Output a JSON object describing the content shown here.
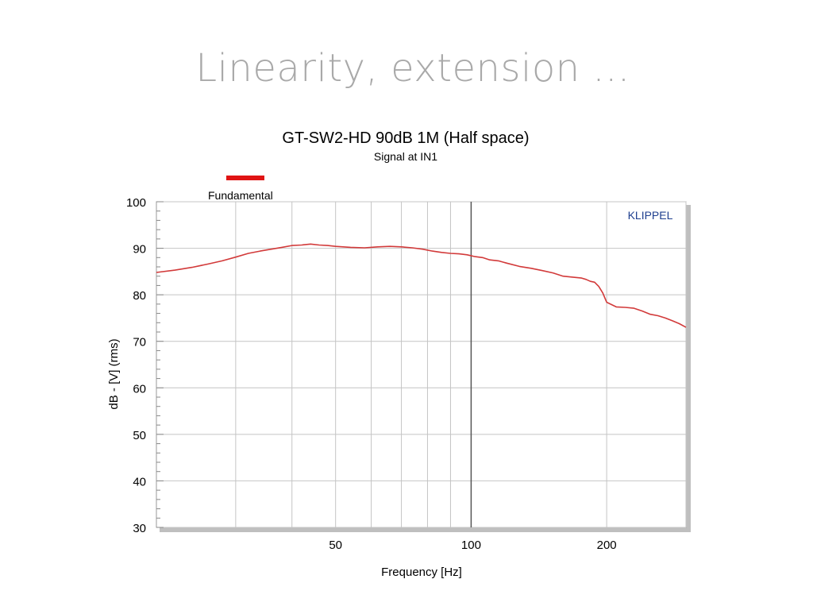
{
  "slide": {
    "title": "Linearity, extension ..."
  },
  "colors": {
    "series": "#d23a3a",
    "legend_swatch": "#e01414",
    "grid": "#c4c4c4",
    "major_grid": "#555555",
    "axis_text": "#000000",
    "watermark": "#1f3f8f",
    "plot_shadow": "#bfbfbf"
  },
  "chart_data": {
    "type": "line",
    "title": "GT-SW2-HD  90dB 1M (Half space)",
    "subtitle": "Signal at IN1",
    "xlabel": "Frequency [Hz]",
    "ylabel": "dB - [V]  (rms)",
    "watermark": "KLIPPEL",
    "x_scale": "log",
    "xlim": [
      20,
      300
    ],
    "ylim": [
      30,
      100
    ],
    "grid": true,
    "legend_position": "top-left",
    "x_ticks": [
      {
        "value": 50,
        "label": "50"
      },
      {
        "value": 100,
        "label": "100"
      },
      {
        "value": 200,
        "label": "200"
      }
    ],
    "x_minor_grid": [
      30,
      40,
      60,
      70,
      80,
      90,
      300
    ],
    "x_major_grid": [
      100
    ],
    "y_ticks": [
      {
        "value": 30,
        "label": "30"
      },
      {
        "value": 40,
        "label": "40"
      },
      {
        "value": 50,
        "label": "50"
      },
      {
        "value": 60,
        "label": "60"
      },
      {
        "value": 70,
        "label": "70"
      },
      {
        "value": 80,
        "label": "80"
      },
      {
        "value": 90,
        "label": "90"
      },
      {
        "value": 100,
        "label": "100"
      }
    ],
    "series": [
      {
        "name": "Fundamental",
        "x": [
          20,
          22,
          24,
          26,
          28,
          30,
          32,
          34,
          36,
          38,
          40,
          42,
          44,
          46,
          48,
          50,
          54,
          58,
          62,
          66,
          70,
          74,
          78,
          82,
          86,
          90,
          94,
          98,
          102,
          106,
          110,
          115,
          120,
          128,
          136,
          144,
          152,
          160,
          168,
          176,
          180,
          184,
          188,
          192,
          196,
          200,
          210,
          220,
          230,
          240,
          250,
          260,
          270,
          280,
          290,
          300
        ],
        "y": [
          84.8,
          85.3,
          85.9,
          86.6,
          87.3,
          88.1,
          88.9,
          89.4,
          89.8,
          90.2,
          90.6,
          90.7,
          90.9,
          90.7,
          90.6,
          90.4,
          90.2,
          90.1,
          90.3,
          90.4,
          90.3,
          90.1,
          89.8,
          89.4,
          89.1,
          88.9,
          88.8,
          88.6,
          88.2,
          88.0,
          87.5,
          87.3,
          86.8,
          86.1,
          85.7,
          85.2,
          84.7,
          84.0,
          83.8,
          83.6,
          83.3,
          82.9,
          82.7,
          81.8,
          80.4,
          78.4,
          77.4,
          77.3,
          77.1,
          76.5,
          75.8,
          75.5,
          75.0,
          74.4,
          73.8,
          73.0
        ]
      }
    ]
  }
}
